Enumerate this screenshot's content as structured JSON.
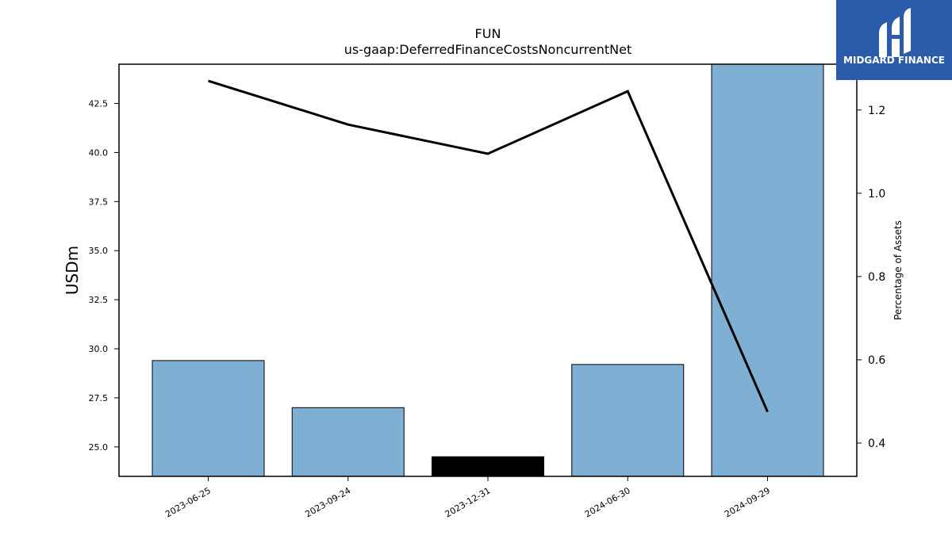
{
  "brand": {
    "name": "MIDGARD FINANCE",
    "color": "#2b5bab"
  },
  "chart_data": {
    "type": "bar",
    "title": "FUN",
    "subtitle": "us-gaap:DeferredFinanceCostsNoncurrentNet",
    "categories": [
      "2023-06-25",
      "2023-09-24",
      "2023-12-31",
      "2024-06-30",
      "2024-09-29"
    ],
    "ylabel": "USDm",
    "y2label": "Percentage of Assets",
    "ylim": [
      23.5,
      44.5
    ],
    "y2lim": [
      0.32,
      1.31
    ],
    "yticks": [
      "25.0",
      "27.5",
      "30.0",
      "32.5",
      "35.0",
      "37.5",
      "40.0",
      "42.5"
    ],
    "y2ticks": [
      "0.4",
      "0.6",
      "0.8",
      "1.0",
      "1.2"
    ],
    "series": [
      {
        "type": "bar",
        "values": [
          29.4,
          27.0,
          24.5,
          29.2,
          44.5
        ],
        "colors": [
          "#7fb0d3",
          "#7fb0d3",
          "#000000",
          "#7fb0d3",
          "#7fb0d3"
        ]
      },
      {
        "type": "line",
        "axis": "right",
        "values": [
          1.27,
          1.165,
          1.095,
          1.245,
          0.475
        ],
        "color": "#000000"
      }
    ],
    "grid": false,
    "legend": "none"
  }
}
